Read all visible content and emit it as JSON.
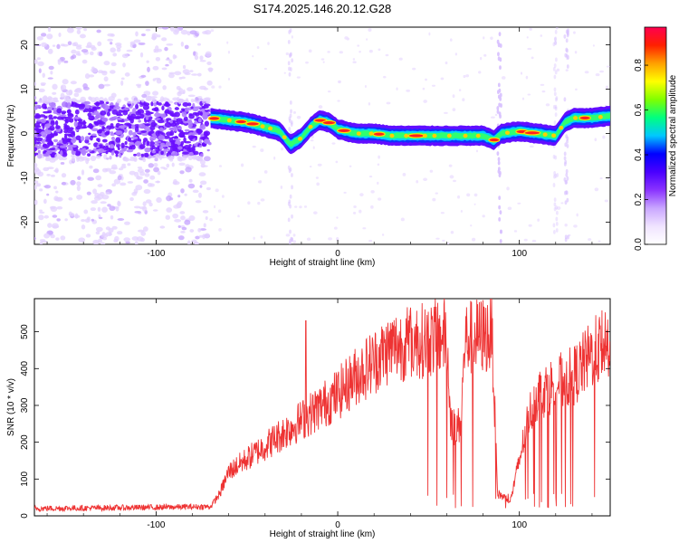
{
  "figure": {
    "title": "S174.2025.146.20.12.G28"
  },
  "chart_data": [
    {
      "type": "heatmap",
      "xlabel": "Height of straight line (km)",
      "ylabel": "Frequency (Hz)",
      "xlim": [
        -167,
        150
      ],
      "ylim": [
        -25,
        24
      ],
      "xticks": [
        -100,
        0,
        100
      ],
      "yticks": [
        -20,
        -10,
        0,
        10,
        20
      ],
      "colorbar": {
        "label": "Normalized spectral amplitude",
        "range": [
          0,
          0.97
        ],
        "ticks": [
          0.0,
          0.2,
          0.4,
          0.6,
          0.8
        ],
        "colormap": [
          "#ffffff",
          "#f0e4ff",
          "#c9a6ff",
          "#8a33ff",
          "#4a00ff",
          "#0000ff",
          "#00c8ff",
          "#00ff80",
          "#80ff00",
          "#ffff00",
          "#ffa000",
          "#ff2000",
          "#ff0050"
        ]
      },
      "ridge": {
        "description_points_x": [
          -70,
          -60,
          -50,
          -40,
          -32,
          -26,
          -20,
          -15,
          -10,
          -5,
          0,
          10,
          20,
          30,
          40,
          50,
          60,
          70,
          80,
          86,
          90,
          100,
          110,
          120,
          125,
          130,
          140,
          150
        ],
        "frequency_hz": [
          3.5,
          3.0,
          2.5,
          1.5,
          0.5,
          -2.5,
          -1.0,
          1.5,
          3.0,
          2.5,
          1.0,
          0.0,
          0.0,
          -0.5,
          -0.5,
          -0.5,
          -0.5,
          -0.5,
          -0.5,
          -1.5,
          0.0,
          0.5,
          0.0,
          -0.5,
          2.5,
          3.5,
          3.5,
          4.0
        ]
      },
      "noise_region": {
        "x_range": [
          -167,
          -70
        ],
        "frequency_range": [
          -25,
          24
        ]
      }
    },
    {
      "type": "line",
      "xlabel": "Height of straight line (km)",
      "ylabel": "SNR (10 * v/v)",
      "xlim": [
        -167,
        150
      ],
      "ylim": [
        0,
        590
      ],
      "xticks": [
        -100,
        0,
        100
      ],
      "yticks": [
        0,
        100,
        200,
        300,
        400,
        500
      ],
      "color": "#ee3333",
      "trend_x": [
        -167,
        -120,
        -70,
        -65,
        -60,
        -40,
        -20,
        0,
        10,
        20,
        30,
        40,
        50,
        60,
        62,
        65,
        68,
        70,
        80,
        85,
        88,
        92,
        95,
        100,
        105,
        110,
        120,
        130,
        140,
        150
      ],
      "trend_y": [
        20,
        22,
        25,
        60,
        120,
        190,
        260,
        330,
        380,
        420,
        460,
        470,
        480,
        490,
        270,
        230,
        260,
        480,
        490,
        490,
        60,
        50,
        40,
        150,
        270,
        330,
        360,
        380,
        440,
        480
      ]
    }
  ]
}
